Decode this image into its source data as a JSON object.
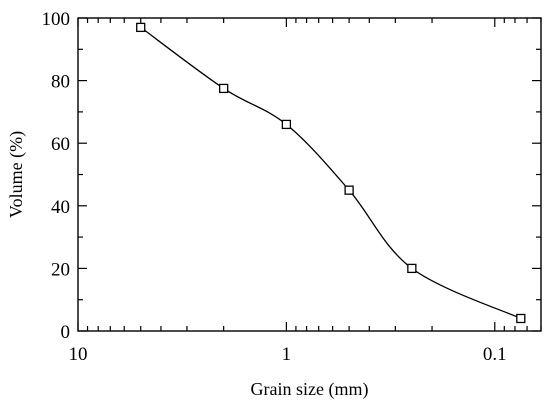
{
  "chart_data": {
    "type": "line",
    "x_scale": "log",
    "x_reversed": true,
    "xlabel": "Grain size (mm)",
    "ylabel": "Volume (%)",
    "xlim": [
      10,
      0.06
    ],
    "ylim": [
      0,
      100
    ],
    "x_ticks": [
      {
        "value": 10,
        "label": "10"
      },
      {
        "value": 1,
        "label": "1"
      },
      {
        "value": 0.1,
        "label": "0.1"
      }
    ],
    "y_ticks": [
      {
        "value": 0,
        "label": "0"
      },
      {
        "value": 20,
        "label": "20"
      },
      {
        "value": 40,
        "label": "40"
      },
      {
        "value": 60,
        "label": "60"
      },
      {
        "value": 80,
        "label": "80"
      },
      {
        "value": 100,
        "label": "100"
      }
    ],
    "grid": false,
    "marker": "open-square",
    "series": [
      {
        "x": [
          5,
          2,
          1,
          0.5,
          0.25,
          0.075
        ],
        "y": [
          97,
          77.5,
          66,
          45,
          20,
          4
        ]
      }
    ]
  }
}
